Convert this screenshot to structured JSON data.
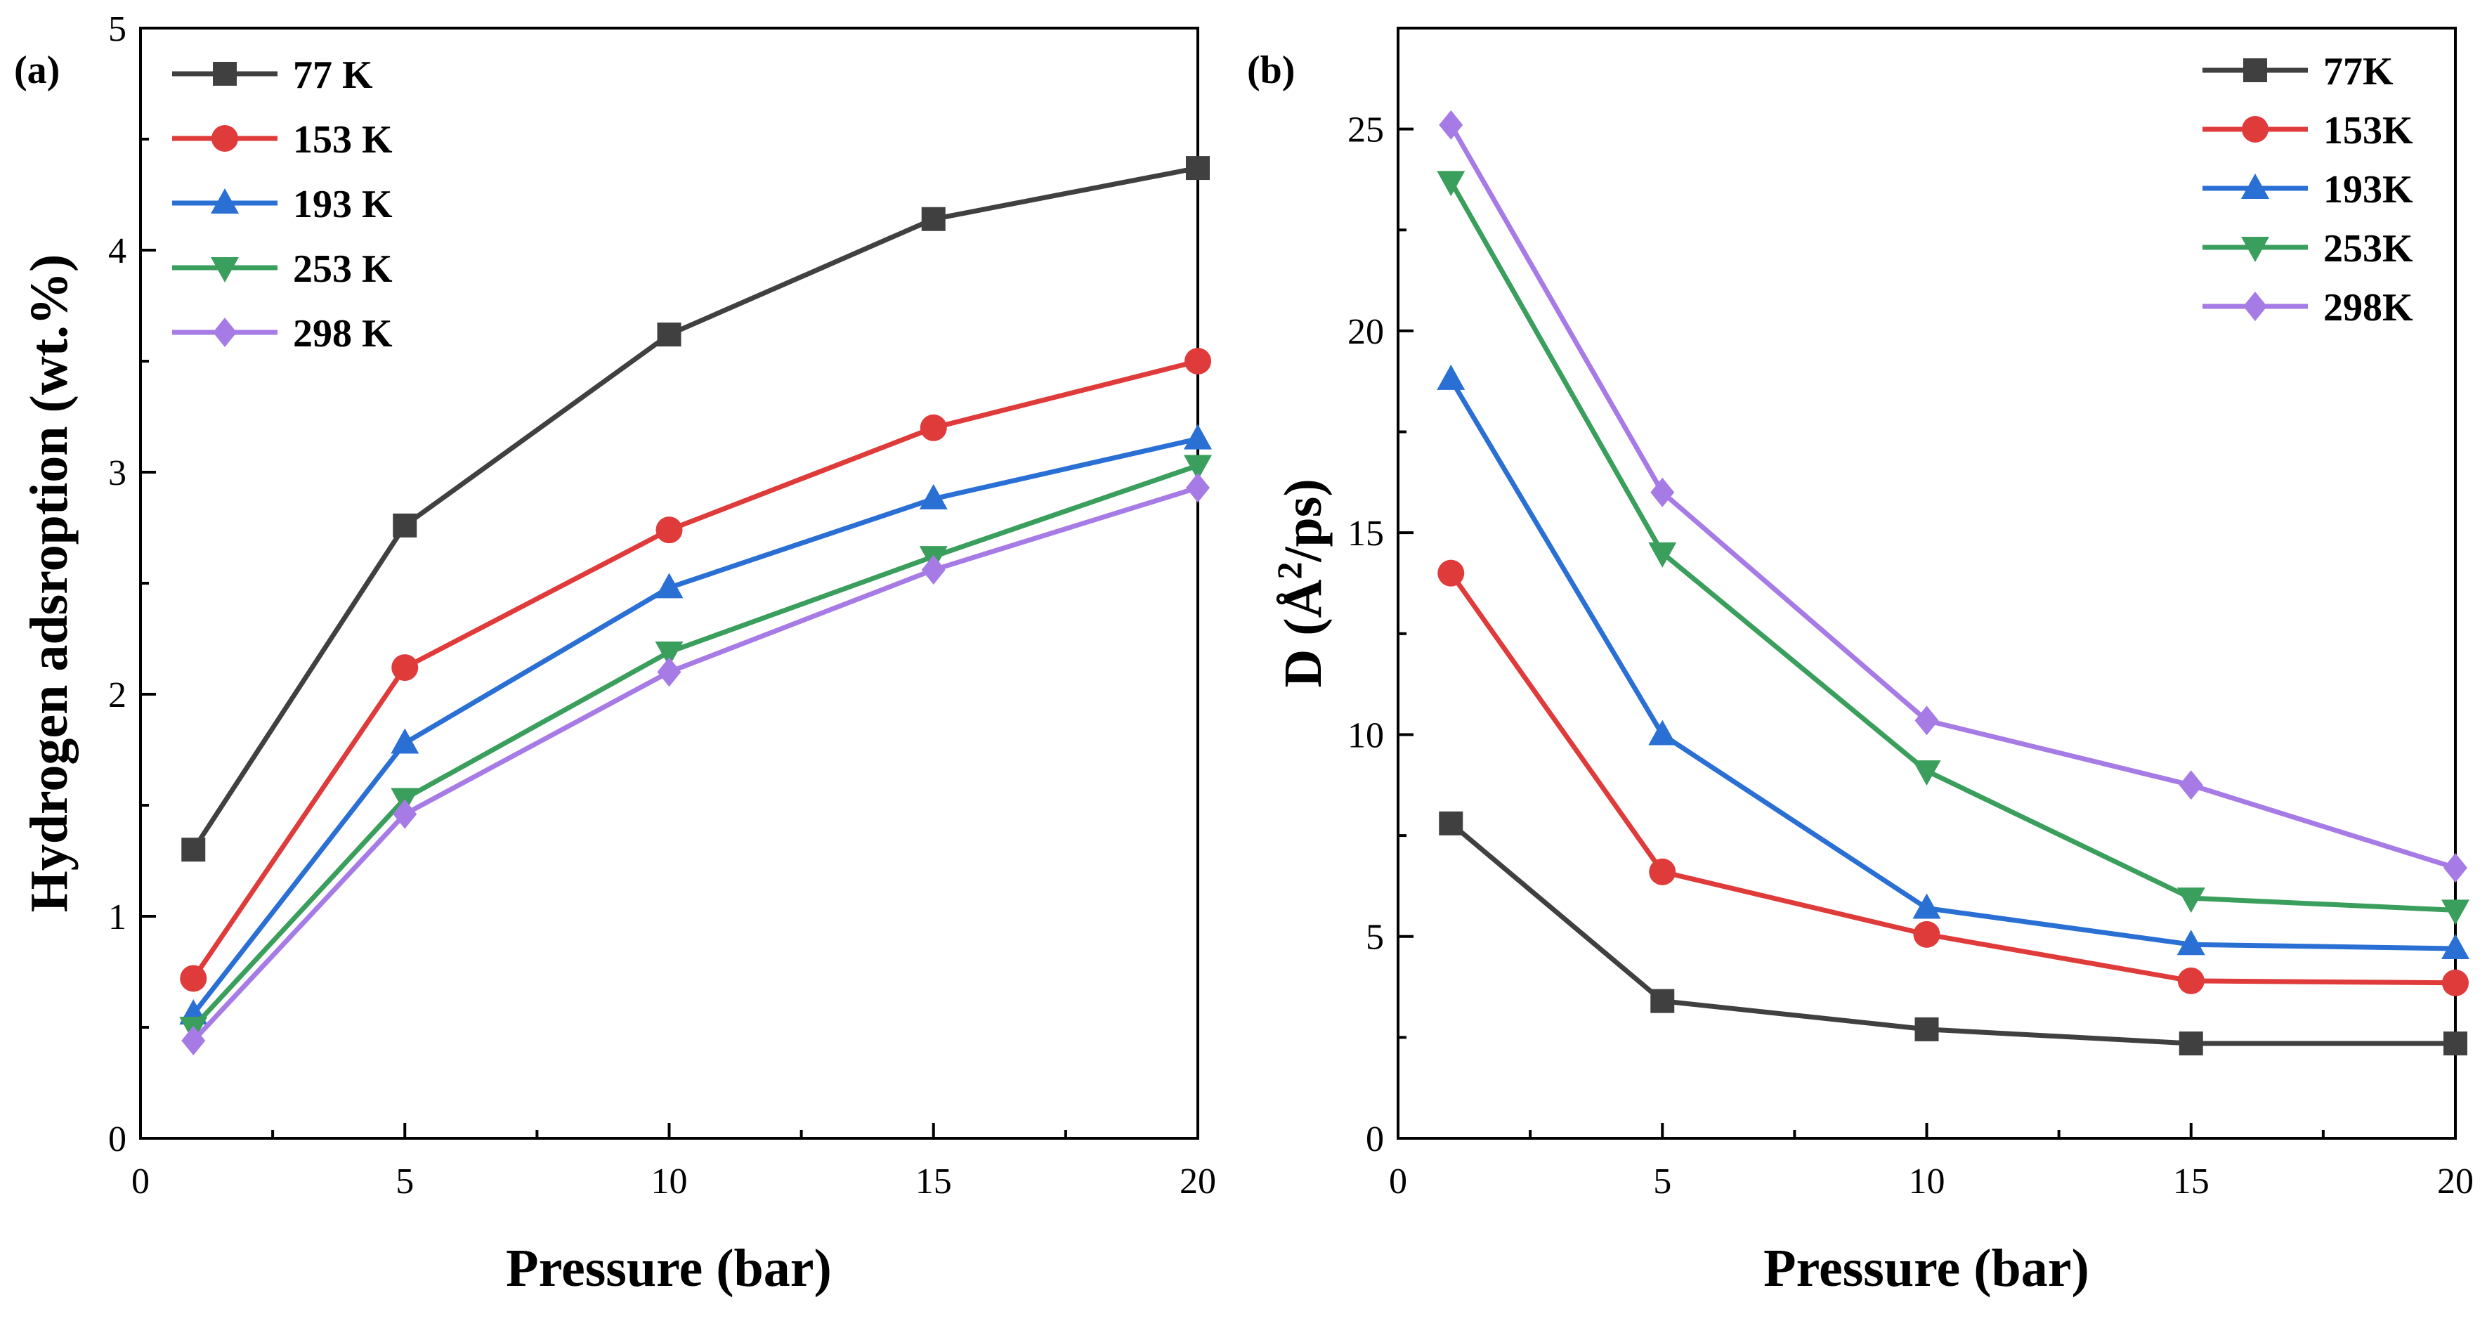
{
  "chart_data": [
    {
      "type": "line",
      "panel_label": "(a)",
      "xlabel": "Pressure (bar)",
      "ylabel": "Hydrogen adsroption (wt.%)",
      "xlim": [
        0,
        20
      ],
      "ylim": [
        0,
        5
      ],
      "xticks": [
        0,
        5,
        10,
        15,
        20
      ],
      "yticks": [
        0,
        1,
        2,
        3,
        4,
        5
      ],
      "legend_position": "top-left",
      "x": [
        1,
        5,
        10,
        15,
        20
      ],
      "series": [
        {
          "name": "77 K",
          "color": "#404040",
          "marker": "square",
          "values": [
            1.3,
            2.76,
            3.62,
            4.14,
            4.37
          ]
        },
        {
          "name": "153 K",
          "color": "#e03b3b",
          "marker": "circle",
          "values": [
            0.72,
            2.12,
            2.74,
            3.2,
            3.5
          ]
        },
        {
          "name": "193 K",
          "color": "#2a6fd4",
          "marker": "triangle-up",
          "values": [
            0.56,
            1.78,
            2.48,
            2.88,
            3.15
          ]
        },
        {
          "name": "253 K",
          "color": "#3a9e5c",
          "marker": "triangle-down",
          "values": [
            0.5,
            1.53,
            2.19,
            2.62,
            3.03
          ]
        },
        {
          "name": "298 K",
          "color": "#a77be6",
          "marker": "diamond",
          "values": [
            0.44,
            1.46,
            2.1,
            2.56,
            2.93
          ]
        }
      ]
    },
    {
      "type": "line",
      "panel_label": "(b)",
      "xlabel": "Pressure (bar)",
      "ylabel": "D (Å²/ps)",
      "ylabel_prefix": "D (Å",
      "ylabel_sup": "2",
      "ylabel_suffix": "/ps)",
      "xlim": [
        0,
        20
      ],
      "ylim": [
        0,
        27.5
      ],
      "xticks": [
        0,
        5,
        10,
        15,
        20
      ],
      "yticks": [
        0,
        5,
        10,
        15,
        20,
        25
      ],
      "legend_position": "top-right",
      "x": [
        1,
        5,
        10,
        15,
        20
      ],
      "series": [
        {
          "name": "77K",
          "color": "#404040",
          "marker": "square",
          "values": [
            7.8,
            3.4,
            2.7,
            2.35,
            2.35
          ]
        },
        {
          "name": "153K",
          "color": "#e03b3b",
          "marker": "circle",
          "values": [
            14.0,
            6.6,
            5.05,
            3.9,
            3.85
          ]
        },
        {
          "name": "193K",
          "color": "#2a6fd4",
          "marker": "triangle-up",
          "values": [
            18.8,
            10.0,
            5.7,
            4.8,
            4.7
          ]
        },
        {
          "name": "253K",
          "color": "#3a9e5c",
          "marker": "triangle-down",
          "values": [
            23.7,
            14.5,
            9.1,
            5.95,
            5.65
          ]
        },
        {
          "name": "298K",
          "color": "#a77be6",
          "marker": "diamond",
          "values": [
            25.1,
            16.0,
            10.35,
            8.75,
            6.7
          ]
        }
      ]
    }
  ]
}
